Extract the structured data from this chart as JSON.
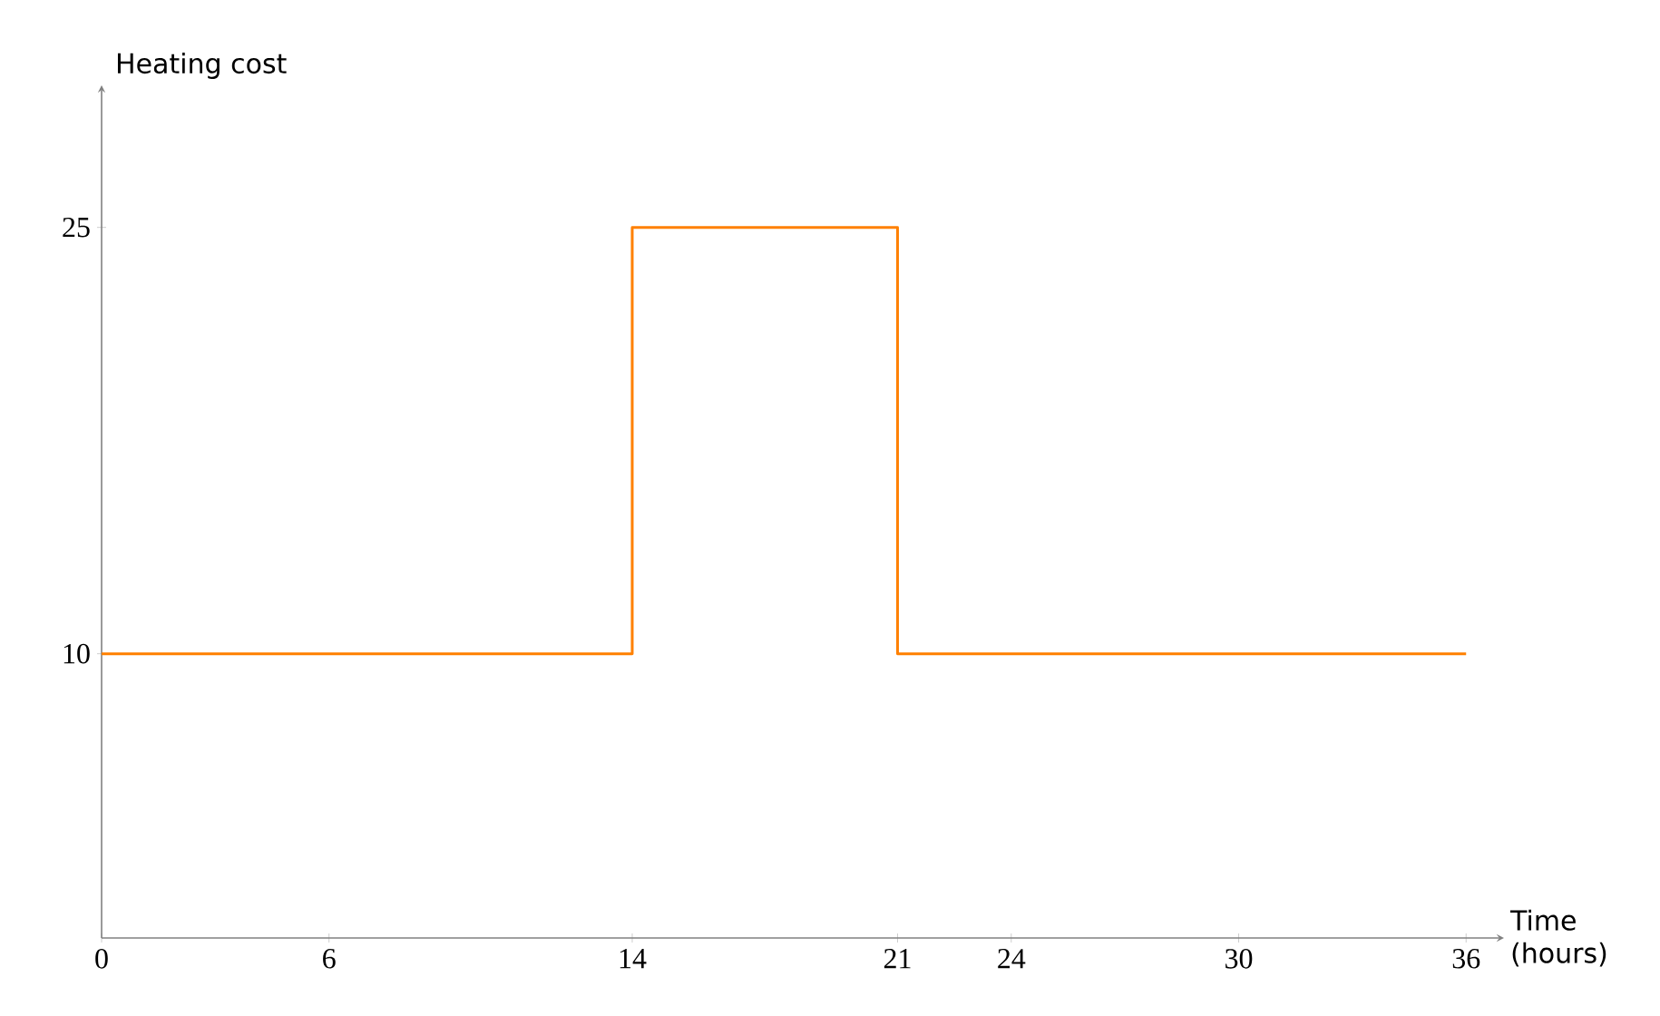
{
  "chart_data": {
    "type": "step",
    "xlabel": "Time (hours)",
    "ylabel": "Heating cost",
    "x": [
      0,
      14,
      21,
      36
    ],
    "series": [
      {
        "color": "#ff8000",
        "values": [
          10,
          25,
          10,
          10
        ]
      }
    ],
    "xlim": [
      0,
      37
    ],
    "ylim": [
      0,
      30
    ],
    "xticks": [
      0,
      6,
      14,
      21,
      24,
      30,
      36
    ],
    "yticks": [
      10,
      25
    ]
  }
}
